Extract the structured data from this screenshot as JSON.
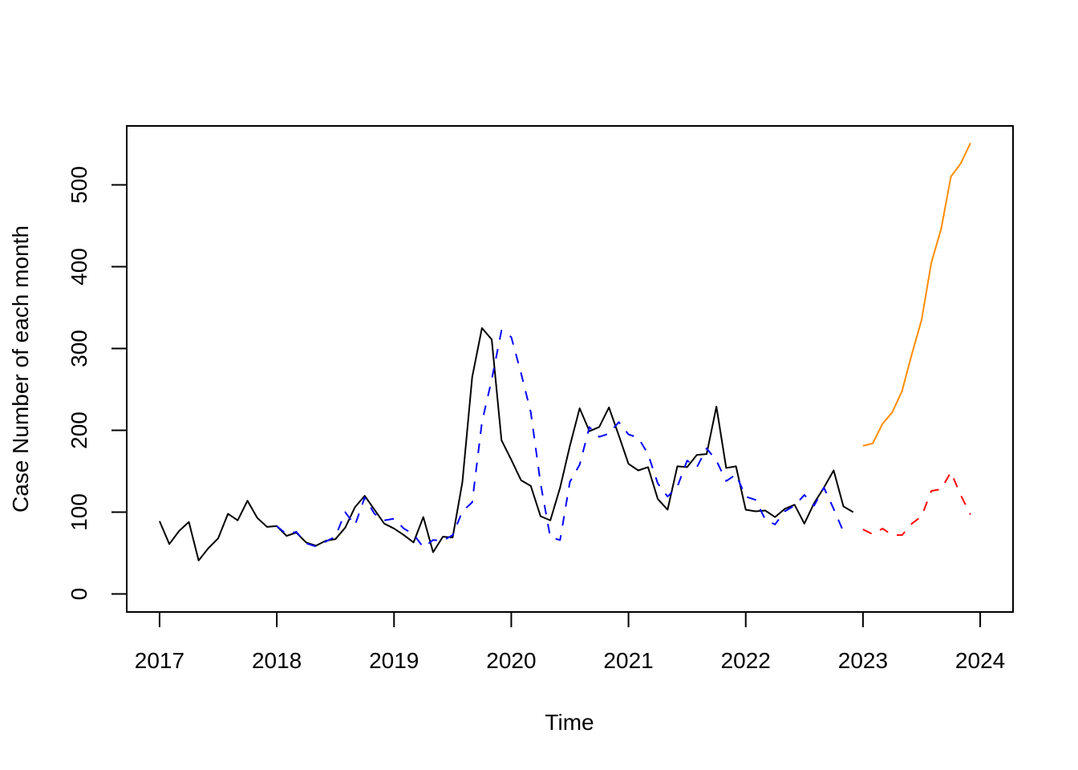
{
  "chart_data": {
    "type": "line",
    "title": "",
    "xlabel": "Time",
    "ylabel": "Case Number of each month",
    "xlim": [
      2016.72,
      2024.28
    ],
    "ylim": [
      -22,
      572
    ],
    "x_ticks": [
      2017,
      2018,
      2019,
      2020,
      2021,
      2022,
      2023,
      2024
    ],
    "x_tick_labels": [
      "2017",
      "2018",
      "2019",
      "2020",
      "2021",
      "2022",
      "2023",
      "2024"
    ],
    "y_ticks": [
      0,
      100,
      200,
      300,
      400,
      500
    ],
    "y_tick_labels": [
      "0",
      "100",
      "200",
      "300",
      "400",
      "500"
    ],
    "grid": false,
    "series": [
      {
        "color": "#000000",
        "dash": "solid",
        "start": 2017.0,
        "step": 0.0833333,
        "values": [
          89,
          61,
          77,
          88,
          41,
          56,
          68,
          98,
          90,
          114,
          93,
          82,
          83,
          71,
          75,
          63,
          59,
          65,
          67,
          81,
          106,
          120,
          103,
          86,
          80,
          72,
          63,
          94,
          51,
          70,
          69,
          137,
          265,
          325,
          311,
          188,
          164,
          139,
          132,
          95,
          90,
          130,
          181,
          227,
          199,
          204,
          228,
          194,
          159,
          151,
          155,
          116,
          103,
          156,
          155,
          170,
          171,
          229,
          154,
          156,
          103,
          101,
          102,
          94,
          104,
          109,
          86,
          111,
          130,
          151,
          107,
          100
        ]
      },
      {
        "color": "#0000ff",
        "dash": "dashed",
        "start": 2018.0,
        "step": 0.0833333,
        "values": [
          83,
          73,
          76,
          62,
          58,
          64,
          70,
          100,
          84,
          118,
          98,
          90,
          92,
          80,
          73,
          57,
          66,
          65,
          72,
          101,
          112,
          210,
          262,
          322,
          314,
          270,
          222,
          135,
          69,
          66,
          137,
          158,
          204,
          192,
          196,
          210,
          195,
          191,
          171,
          135,
          119,
          131,
          163,
          155,
          178,
          163,
          138,
          146,
          119,
          115,
          91,
          85,
          101,
          108,
          121,
          108,
          130,
          104,
          76
        ]
      },
      {
        "color": "#ff8c00",
        "dash": "solid",
        "start": 2023.0,
        "step": 0.0833333,
        "values": [
          181,
          184,
          208,
          222,
          248,
          293,
          335,
          405,
          446,
          510,
          526,
          551
        ]
      },
      {
        "color": "#ff0000",
        "dash": "dashed",
        "start": 2023.0,
        "step": 0.0833333,
        "values": [
          79,
          73,
          80,
          72,
          72,
          86,
          95,
          126,
          128,
          149,
          121,
          97
        ]
      }
    ]
  }
}
